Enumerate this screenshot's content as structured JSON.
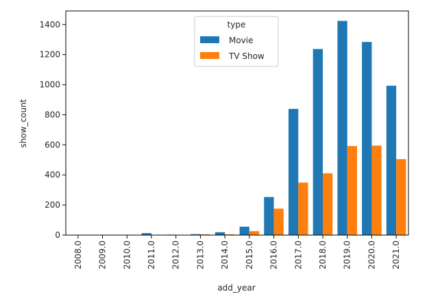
{
  "chart_data": {
    "type": "bar",
    "title": "",
    "xlabel": "add_year",
    "ylabel": "show_count",
    "categories": [
      "2008.0",
      "2009.0",
      "2010.0",
      "2011.0",
      "2012.0",
      "2013.0",
      "2014.0",
      "2015.0",
      "2016.0",
      "2017.0",
      "2018.0",
      "2019.0",
      "2020.0",
      "2021.0"
    ],
    "series": [
      {
        "name": "Movie",
        "color": "#1f77b4",
        "values": [
          1,
          2,
          1,
          13,
          3,
          6,
          19,
          56,
          253,
          839,
          1237,
          1424,
          1284,
          993
        ]
      },
      {
        "name": "TV Show",
        "color": "#ff7f0e",
        "values": [
          1,
          0,
          0,
          0,
          0,
          5,
          5,
          26,
          176,
          349,
          411,
          592,
          595,
          505
        ]
      }
    ],
    "ylim": [
      0,
      1490
    ],
    "yticks": [
      0,
      200,
      400,
      600,
      800,
      1000,
      1200,
      1400
    ],
    "grid": false,
    "legend": {
      "title": "type",
      "placement": "top-center"
    }
  }
}
